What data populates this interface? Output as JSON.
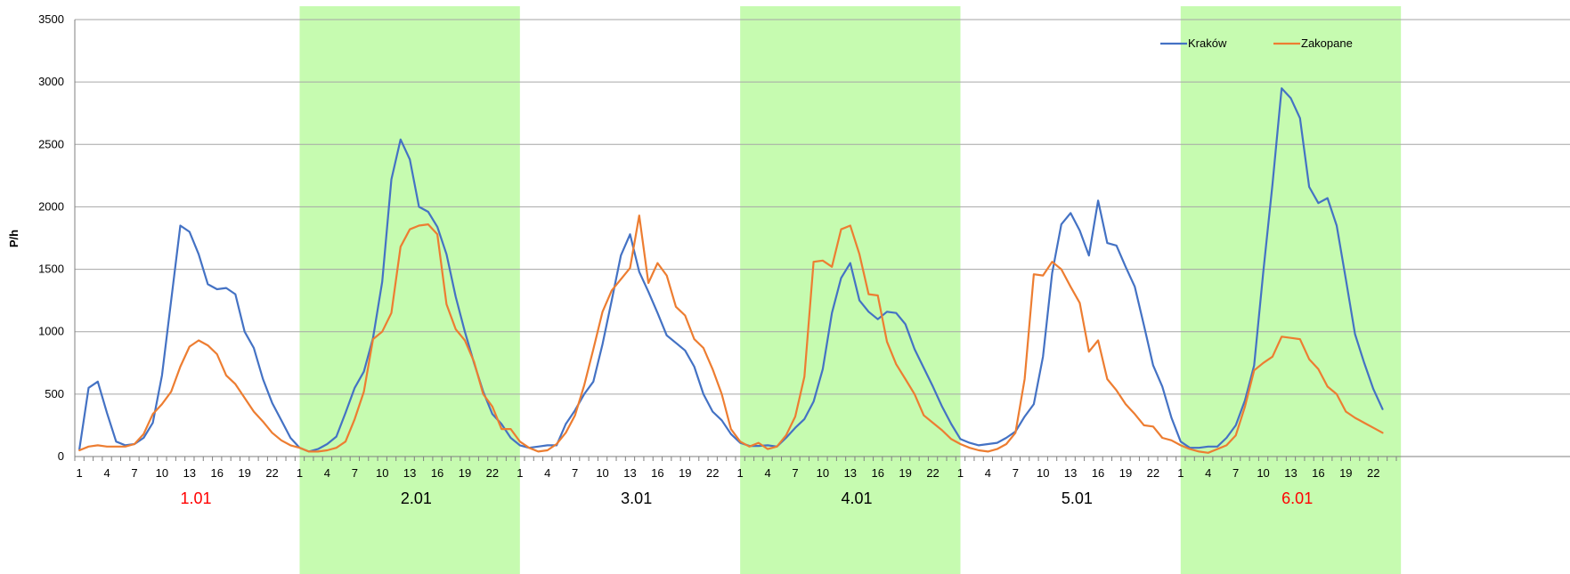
{
  "chart_data": {
    "type": "line",
    "ylabel": "P/h",
    "ylim": [
      0,
      3500
    ],
    "yticks": [
      0,
      500,
      1000,
      1500,
      2000,
      2500,
      3000,
      3500
    ],
    "grid": true,
    "legend_position": "top-right",
    "hours_per_day": 24,
    "hour_tick_labels": [
      "1",
      "4",
      "7",
      "10",
      "13",
      "16",
      "19",
      "22"
    ],
    "days": [
      {
        "label": "1.01",
        "highlight": false,
        "label_color": "#ff0000"
      },
      {
        "label": "2.01",
        "highlight": true,
        "label_color": "#000000"
      },
      {
        "label": "3.01",
        "highlight": false,
        "label_color": "#000000"
      },
      {
        "label": "4.01",
        "highlight": true,
        "label_color": "#000000"
      },
      {
        "label": "5.01",
        "highlight": false,
        "label_color": "#000000"
      },
      {
        "label": "6.01",
        "highlight": true,
        "label_color": "#ff0000"
      }
    ],
    "highlight_color": "#c6fbb0",
    "series": [
      {
        "name": "Kraków",
        "color": "#4472c4",
        "values": [
          60,
          550,
          600,
          350,
          120,
          90,
          100,
          150,
          270,
          650,
          1250,
          1850,
          1800,
          1620,
          1380,
          1340,
          1350,
          1300,
          1000,
          870,
          620,
          430,
          290,
          150,
          70,
          40,
          60,
          100,
          160,
          350,
          550,
          680,
          950,
          1400,
          2220,
          2540,
          2380,
          2000,
          1960,
          1840,
          1620,
          1280,
          1000,
          750,
          520,
          340,
          260,
          150,
          90,
          70,
          80,
          90,
          90,
          260,
          370,
          500,
          600,
          900,
          1250,
          1610,
          1780,
          1480,
          1320,
          1150,
          970,
          910,
          850,
          720,
          500,
          360,
          290,
          180,
          110,
          85,
          85,
          90,
          80,
          150,
          230,
          300,
          440,
          700,
          1150,
          1430,
          1550,
          1250,
          1160,
          1100,
          1160,
          1150,
          1060,
          860,
          710,
          560,
          400,
          260,
          140,
          110,
          90,
          100,
          110,
          150,
          200,
          320,
          420,
          800,
          1470,
          1860,
          1950,
          1810,
          1610,
          2050,
          1710,
          1690,
          1520,
          1360,
          1050,
          730,
          560,
          310,
          120,
          70,
          70,
          80,
          80,
          150,
          250,
          450,
          730,
          1480,
          2180,
          2950,
          2870,
          2710,
          2160,
          2030,
          2070,
          1850,
          1420,
          980,
          750,
          540,
          380
        ]
      },
      {
        "name": "Zakopane",
        "color": "#ed7d31",
        "values": [
          50,
          80,
          90,
          80,
          80,
          80,
          100,
          180,
          340,
          420,
          520,
          720,
          880,
          930,
          890,
          820,
          650,
          580,
          470,
          360,
          280,
          190,
          130,
          90,
          70,
          40,
          40,
          50,
          70,
          120,
          300,
          520,
          940,
          1000,
          1150,
          1680,
          1820,
          1850,
          1860,
          1780,
          1220,
          1020,
          930,
          760,
          500,
          400,
          220,
          220,
          120,
          70,
          40,
          50,
          100,
          190,
          330,
          570,
          860,
          1160,
          1330,
          1420,
          1510,
          1930,
          1390,
          1550,
          1450,
          1200,
          1130,
          940,
          870,
          700,
          500,
          220,
          120,
          80,
          110,
          60,
          80,
          170,
          320,
          640,
          1560,
          1570,
          1520,
          1820,
          1850,
          1620,
          1300,
          1290,
          920,
          740,
          620,
          500,
          330,
          270,
          210,
          140,
          100,
          70,
          50,
          40,
          60,
          100,
          190,
          620,
          1460,
          1450,
          1560,
          1500,
          1360,
          1230,
          840,
          930,
          620,
          530,
          420,
          340,
          250,
          240,
          150,
          130,
          90,
          60,
          40,
          30,
          60,
          90,
          170,
          400,
          690,
          750,
          800,
          960,
          950,
          940,
          780,
          700,
          560,
          500,
          360,
          310,
          270,
          230,
          190
        ]
      }
    ]
  }
}
